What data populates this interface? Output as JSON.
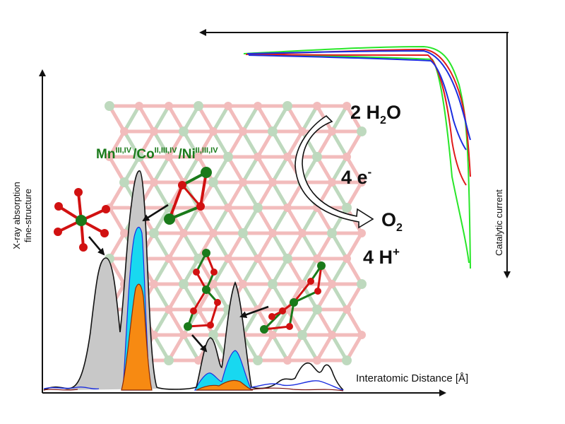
{
  "labels": {
    "y_axis_line1": "X-ray absorption",
    "y_axis_line2": "fine-structure",
    "x_axis": "Interatomic Distance [Å]",
    "catalytic_current": "Catalytic current",
    "metal_mn": "Mn",
    "metal_mn_sup": "III,IV",
    "metal_co": "/Co",
    "metal_co_sup": "II,III,IV",
    "metal_ni": "/Ni",
    "metal_ni_sup": "II,III,IV"
  },
  "reaction": {
    "reactant_coeff": "2 H",
    "reactant_sub": "2",
    "reactant_end": "O",
    "electrons": "4 e",
    "electrons_sup": "-",
    "product_main": "O",
    "product_sub": "2",
    "protons": "4 H",
    "protons_sup": "+"
  },
  "colors": {
    "mn_green": "#1a7a1a",
    "oxygen_red": "#d11111",
    "peak_grey": "#c8c8c8",
    "peak_cyan": "#18d8f0",
    "peak_orange": "#f78a12",
    "curve_red": "#e01b1b",
    "curve_blue": "#1b2ee0",
    "curve_green": "#29e629"
  }
}
